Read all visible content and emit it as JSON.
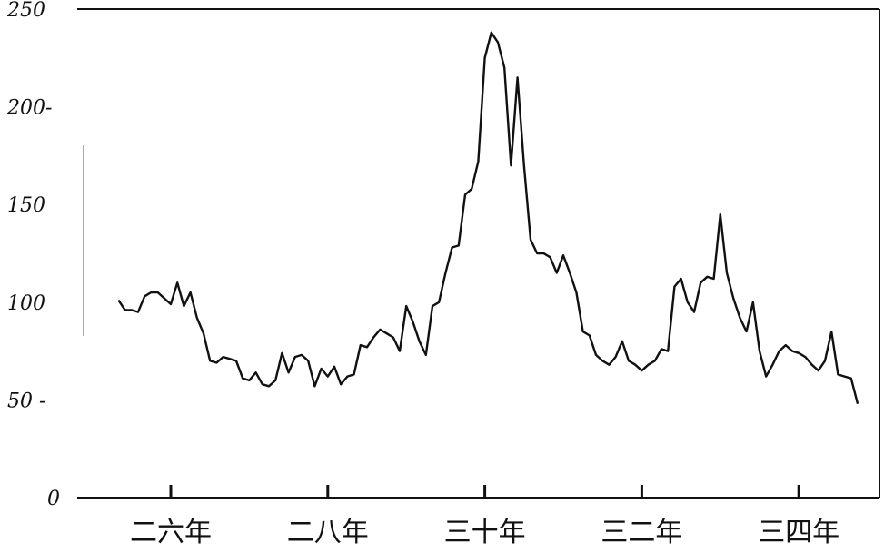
{
  "chart_data": {
    "type": "line",
    "ylim": [
      0,
      250
    ],
    "yticks": [
      "0",
      "50",
      "100",
      "150",
      "200",
      "250"
    ],
    "ytick_labels": [
      "0",
      "50 -",
      "100",
      "150",
      "200-",
      "250"
    ],
    "xticks": [
      {
        "label": "二六年",
        "pos": 0
      },
      {
        "label": "二八年",
        "pos": 24
      },
      {
        "label": "三十年",
        "pos": 48
      },
      {
        "label": "三二年",
        "pos": 72
      },
      {
        "label": "三四年",
        "pos": 96
      }
    ],
    "grid": false,
    "series": [
      {
        "values": [
          [
            -8,
            101
          ],
          [
            -7,
            96
          ],
          [
            -6,
            96
          ],
          [
            -5,
            95
          ],
          [
            -4,
            103
          ],
          [
            -3,
            105
          ],
          [
            -2,
            105
          ],
          [
            -1,
            102
          ],
          [
            0,
            99
          ],
          [
            1,
            110
          ],
          [
            2,
            98
          ],
          [
            3,
            105
          ],
          [
            4,
            92
          ],
          [
            5,
            84
          ],
          [
            6,
            70
          ],
          [
            7,
            69
          ],
          [
            8,
            72
          ],
          [
            9,
            71
          ],
          [
            10,
            70
          ],
          [
            11,
            61
          ],
          [
            12,
            60
          ],
          [
            13,
            64
          ],
          [
            14,
            58
          ],
          [
            15,
            57
          ],
          [
            16,
            60
          ],
          [
            17,
            74
          ],
          [
            18,
            64
          ],
          [
            19,
            72
          ],
          [
            20,
            73
          ],
          [
            21,
            70
          ],
          [
            22,
            57
          ],
          [
            23,
            66
          ],
          [
            24,
            62
          ],
          [
            25,
            67
          ],
          [
            26,
            58
          ],
          [
            27,
            62
          ],
          [
            28,
            63
          ],
          [
            29,
            78
          ],
          [
            30,
            77
          ],
          [
            31,
            82
          ],
          [
            32,
            86
          ],
          [
            33,
            84
          ],
          [
            34,
            82
          ],
          [
            35,
            75
          ],
          [
            36,
            98
          ],
          [
            37,
            90
          ],
          [
            38,
            80
          ],
          [
            39,
            73
          ],
          [
            40,
            98
          ],
          [
            41,
            100
          ],
          [
            42,
            115
          ],
          [
            43,
            128
          ],
          [
            44,
            129
          ],
          [
            45,
            155
          ],
          [
            46,
            158
          ],
          [
            47,
            172
          ],
          [
            48,
            225
          ],
          [
            49,
            238
          ],
          [
            50,
            233
          ],
          [
            51,
            220
          ],
          [
            52,
            170
          ],
          [
            53,
            215
          ],
          [
            54,
            170
          ],
          [
            55,
            132
          ],
          [
            56,
            125
          ],
          [
            57,
            125
          ],
          [
            58,
            123
          ],
          [
            59,
            115
          ],
          [
            60,
            124
          ],
          [
            61,
            115
          ],
          [
            62,
            105
          ],
          [
            63,
            85
          ],
          [
            64,
            83
          ],
          [
            65,
            73
          ],
          [
            66,
            70
          ],
          [
            67,
            68
          ],
          [
            68,
            72
          ],
          [
            69,
            80
          ],
          [
            70,
            70
          ],
          [
            71,
            68
          ],
          [
            72,
            65
          ],
          [
            73,
            68
          ],
          [
            74,
            70
          ],
          [
            75,
            76
          ],
          [
            76,
            75
          ],
          [
            77,
            108
          ],
          [
            78,
            112
          ],
          [
            79,
            100
          ],
          [
            80,
            95
          ],
          [
            81,
            110
          ],
          [
            82,
            113
          ],
          [
            83,
            112
          ],
          [
            84,
            145
          ],
          [
            85,
            115
          ],
          [
            86,
            102
          ],
          [
            87,
            92
          ],
          [
            88,
            85
          ],
          [
            89,
            100
          ],
          [
            90,
            75
          ],
          [
            91,
            62
          ],
          [
            92,
            68
          ],
          [
            93,
            75
          ],
          [
            94,
            78
          ],
          [
            95,
            75
          ],
          [
            96,
            74
          ],
          [
            97,
            72
          ],
          [
            98,
            68
          ],
          [
            99,
            65
          ],
          [
            100,
            70
          ],
          [
            101,
            85
          ],
          [
            102,
            63
          ],
          [
            103,
            62
          ],
          [
            104,
            61
          ],
          [
            105,
            48
          ]
        ]
      }
    ]
  }
}
